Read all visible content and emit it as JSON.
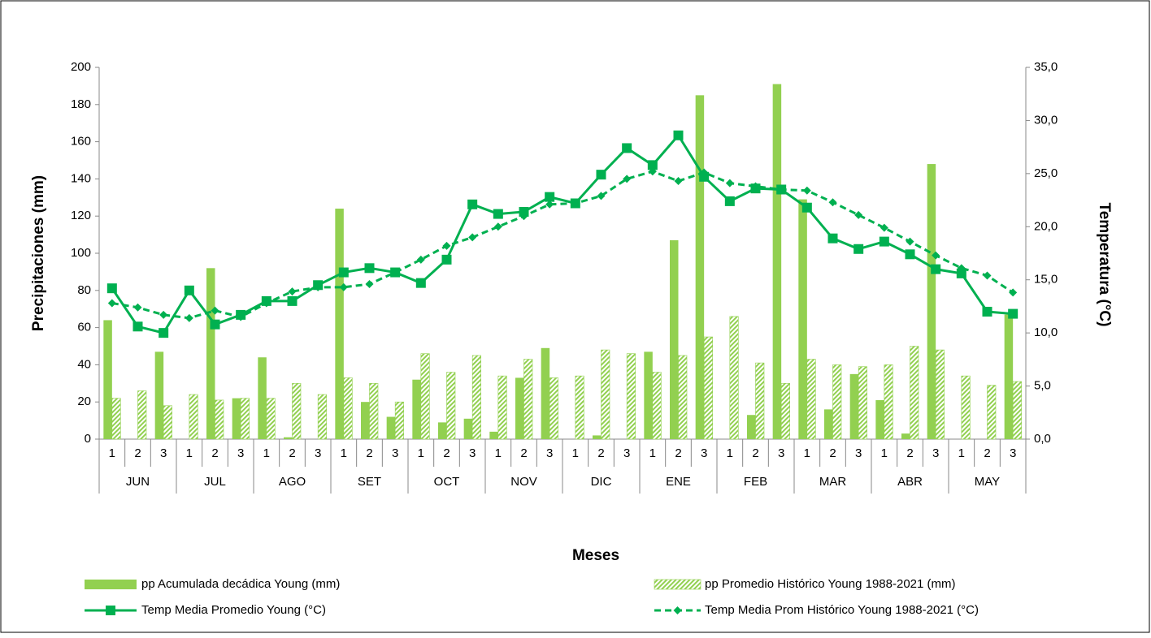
{
  "chart_data": {
    "type": "bar-line",
    "x_label": "Meses",
    "y_label": "Precipitaciones (mm)",
    "y2_label": "Temperatura (°C)",
    "categories": [
      "1",
      "2",
      "3",
      "1",
      "2",
      "3",
      "1",
      "2",
      "3",
      "1",
      "2",
      "3",
      "1",
      "2",
      "3",
      "1",
      "2",
      "3",
      "1",
      "2",
      "3",
      "1",
      "2",
      "3",
      "1",
      "2",
      "3",
      "1",
      "2",
      "3",
      "1",
      "2",
      "3",
      "1",
      "2",
      "3"
    ],
    "months": [
      "JUN",
      "JUL",
      "AGO",
      "SET",
      "OCT",
      "NOV",
      "DIC",
      "ENE",
      "FEB",
      "MAR",
      "ABR",
      "MAY"
    ],
    "ylim": [
      0,
      200
    ],
    "yticks": [
      0,
      20,
      40,
      60,
      80,
      100,
      120,
      140,
      160,
      180,
      200
    ],
    "y2lim": [
      0,
      35
    ],
    "y2ticks": [
      {
        "value": 0,
        "label": "0,0"
      },
      {
        "value": 5,
        "label": "5,0"
      },
      {
        "value": 10,
        "label": "10,0"
      },
      {
        "value": 15,
        "label": "15,0"
      },
      {
        "value": 20,
        "label": "20,0"
      },
      {
        "value": 25,
        "label": "25,0"
      },
      {
        "value": 30,
        "label": "30,0"
      },
      {
        "value": 35,
        "label": "35,0"
      }
    ],
    "series": [
      {
        "name": "pp Acumulada decádica Young (mm)",
        "kind": "bar",
        "color": "#92d050",
        "values": [
          64,
          0,
          47,
          0,
          92,
          22,
          44,
          1,
          0,
          124,
          20,
          12,
          32,
          9,
          11,
          4,
          33,
          49,
          0,
          2,
          0,
          47,
          107,
          185,
          0,
          13,
          191,
          129,
          16,
          35,
          21,
          3,
          148,
          0,
          0,
          67
        ]
      },
      {
        "name": "pp Promedio Histórico Young 1988-2021 (mm)",
        "kind": "hatched-bar",
        "color": "#92d050",
        "values": [
          22,
          26,
          18,
          24,
          21,
          22,
          22,
          30,
          24,
          33,
          30,
          20,
          46,
          36,
          45,
          34,
          43,
          33,
          34,
          48,
          46,
          36,
          45,
          55,
          66,
          41,
          30,
          43,
          40,
          39,
          40,
          50,
          48,
          34,
          29,
          31
        ]
      },
      {
        "name": "Temp Media Promedio Young (°C)",
        "kind": "line",
        "axis": "y2",
        "color": "#00b050",
        "values": [
          14.2,
          10.6,
          10.0,
          14.0,
          10.8,
          11.7,
          13.0,
          13.0,
          14.5,
          15.7,
          16.1,
          15.7,
          14.7,
          16.9,
          22.1,
          21.2,
          21.4,
          22.8,
          22.2,
          24.9,
          27.4,
          25.8,
          28.6,
          24.7,
          22.4,
          23.6,
          23.5,
          21.8,
          18.9,
          17.9,
          18.6,
          17.4,
          16.0,
          15.6,
          12.0,
          11.8
        ]
      },
      {
        "name": "Temp Media Prom Histórico Young 1988-2021 (°C)",
        "kind": "dashed-line",
        "axis": "y2",
        "color": "#00b050",
        "values": [
          12.8,
          12.4,
          11.7,
          11.4,
          12.1,
          11.5,
          12.8,
          13.9,
          14.3,
          14.3,
          14.6,
          15.7,
          16.9,
          18.2,
          19.0,
          20.0,
          21.0,
          22.1,
          22.2,
          22.9,
          24.5,
          25.2,
          24.3,
          25.1,
          24.1,
          23.8,
          23.5,
          23.4,
          22.3,
          21.1,
          19.9,
          18.6,
          17.3,
          16.1,
          15.4,
          13.8
        ]
      }
    ]
  }
}
